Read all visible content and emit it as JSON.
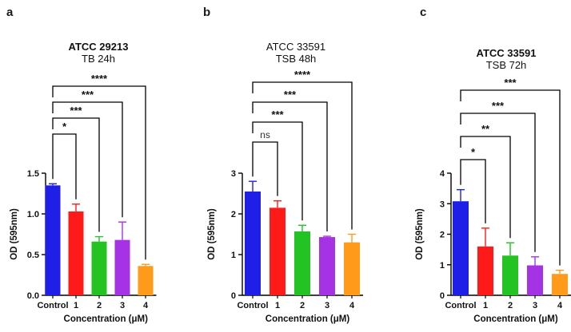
{
  "figure": {
    "panels": [
      "a",
      "b",
      "c"
    ]
  },
  "chart_data": [
    {
      "type": "bar",
      "panel": "a",
      "title": "ATCC 29213",
      "subtitle": "TB  24h",
      "title_bold": true,
      "xlabel": "Concentration (μM)",
      "ylabel": "OD (595nm)",
      "categories": [
        "Control",
        "1",
        "2",
        "3",
        "4"
      ],
      "values": [
        1.35,
        1.03,
        0.66,
        0.68,
        0.36
      ],
      "errors": [
        0.02,
        0.09,
        0.06,
        0.22,
        0.02
      ],
      "colors": [
        "#1f1fe8",
        "#ff1a1a",
        "#22c322",
        "#a632e6",
        "#ff9a1a"
      ],
      "ylim": [
        0,
        1.5
      ],
      "yticks": [
        0.0,
        0.5,
        1.0,
        1.5
      ],
      "ytick_labels": [
        "0.0",
        "0.5",
        "1.0",
        "1.5"
      ],
      "comparisons": [
        {
          "from": "Control",
          "to": "1",
          "label": "*"
        },
        {
          "from": "Control",
          "to": "2",
          "label": "***"
        },
        {
          "from": "Control",
          "to": "3",
          "label": "***"
        },
        {
          "from": "Control",
          "to": "4",
          "label": "****"
        }
      ]
    },
    {
      "type": "bar",
      "panel": "b",
      "title": "ATCC 33591",
      "subtitle": "TSB 48h",
      "title_bold": false,
      "xlabel": "Concentration (μM)",
      "ylabel": "OD (595nm)",
      "categories": [
        "Control",
        "1",
        "2",
        "3",
        "4"
      ],
      "values": [
        2.55,
        2.15,
        1.57,
        1.43,
        1.3
      ],
      "errors": [
        0.25,
        0.17,
        0.15,
        0.02,
        0.2
      ],
      "colors": [
        "#1f1fe8",
        "#ff1a1a",
        "#22c322",
        "#a632e6",
        "#ff9a1a"
      ],
      "ylim": [
        0,
        3
      ],
      "yticks": [
        0,
        1,
        2,
        3
      ],
      "ytick_labels": [
        "0",
        "1",
        "2",
        "3"
      ],
      "comparisons": [
        {
          "from": "Control",
          "to": "1",
          "label": "ns"
        },
        {
          "from": "Control",
          "to": "2",
          "label": "***"
        },
        {
          "from": "Control",
          "to": "3",
          "label": "***"
        },
        {
          "from": "Control",
          "to": "4",
          "label": "****"
        }
      ]
    },
    {
      "type": "bar",
      "panel": "c",
      "title": "ATCC 33591",
      "subtitle": "TSB 72h",
      "title_bold": true,
      "xlabel": "Concentration (μM)",
      "ylabel": "OD (595nm)",
      "categories": [
        "Control",
        "1",
        "2",
        "3",
        "4"
      ],
      "values": [
        3.08,
        1.6,
        1.3,
        0.98,
        0.7
      ],
      "errors": [
        0.38,
        0.6,
        0.42,
        0.28,
        0.12
      ],
      "colors": [
        "#1f1fe8",
        "#ff1a1a",
        "#22c322",
        "#a632e6",
        "#ff9a1a"
      ],
      "ylim": [
        0,
        4
      ],
      "yticks": [
        0,
        1,
        2,
        3,
        4
      ],
      "ytick_labels": [
        "0",
        "1",
        "2",
        "3",
        "4"
      ],
      "comparisons": [
        {
          "from": "Control",
          "to": "1",
          "label": "*"
        },
        {
          "from": "Control",
          "to": "2",
          "label": "**"
        },
        {
          "from": "Control",
          "to": "3",
          "label": "***"
        },
        {
          "from": "Control",
          "to": "4",
          "label": "***"
        }
      ]
    }
  ]
}
